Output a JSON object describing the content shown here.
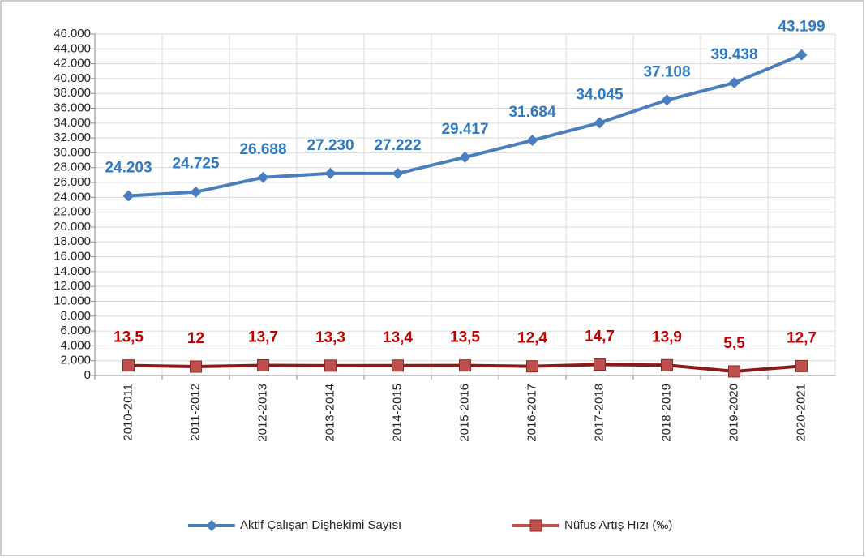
{
  "chart_data": {
    "type": "line",
    "categories": [
      "2010-2011",
      "2011-2012",
      "2012-2013",
      "2013-2014",
      "2014-2015",
      "2015-2016",
      "2016-2017",
      "2017-2018",
      "2018-2019",
      "2019-2020",
      "2020-2021"
    ],
    "series": [
      {
        "name": "Aktif Çalışan Dişhekimi Sayısı",
        "color": "#4a7ebf",
        "marker": "diamond",
        "values": [
          24203,
          24725,
          26688,
          27230,
          27222,
          29417,
          31684,
          34045,
          37108,
          39438,
          43199
        ],
        "value_labels": [
          "24.203",
          "24.725",
          "26.688",
          "27.230",
          "27.222",
          "29.417",
          "31.684",
          "34.045",
          "37.108",
          "39.438",
          "43.199"
        ]
      },
      {
        "name": "Nüfus Artış Hızı (‰)",
        "color": "#c0504d",
        "marker": "square",
        "axis": "y2",
        "values": [
          13.5,
          12,
          13.7,
          13.3,
          13.4,
          13.5,
          12.4,
          14.7,
          13.9,
          5.5,
          12.7
        ],
        "value_labels": [
          "13,5",
          "12",
          "13,7",
          "13,3",
          "13,4",
          "13,5",
          "12,4",
          "14,7",
          "13,9",
          "5,5",
          "12,7"
        ]
      }
    ],
    "ylim": [
      0,
      46000
    ],
    "yticks": [
      {
        "value": 0,
        "label": "0"
      },
      {
        "value": 2000,
        "label": "2.000"
      },
      {
        "value": 4000,
        "label": "4.000"
      },
      {
        "value": 6000,
        "label": "6.000"
      },
      {
        "value": 8000,
        "label": "8.000"
      },
      {
        "value": 10000,
        "label": "10.000"
      },
      {
        "value": 12000,
        "label": "12.000"
      },
      {
        "value": 14000,
        "label": "14.000"
      },
      {
        "value": 16000,
        "label": "16.000"
      },
      {
        "value": 18000,
        "label": "18.000"
      },
      {
        "value": 20000,
        "label": "20.000"
      },
      {
        "value": 22000,
        "label": "22.000"
      },
      {
        "value": 24000,
        "label": "24.000"
      },
      {
        "value": 26000,
        "label": "26.000"
      },
      {
        "value": 28000,
        "label": "28.000"
      },
      {
        "value": 30000,
        "label": "30.000"
      },
      {
        "value": 32000,
        "label": "32.000"
      },
      {
        "value": 34000,
        "label": "34.000"
      },
      {
        "value": 36000,
        "label": "36.000"
      },
      {
        "value": 38000,
        "label": "38.000"
      },
      {
        "value": 40000,
        "label": "40.000"
      },
      {
        "value": 42000,
        "label": "42.000"
      },
      {
        "value": 44000,
        "label": "44.000"
      },
      {
        "value": 46000,
        "label": "46.000"
      }
    ],
    "y2lim": [
      0,
      460
    ],
    "grid": true,
    "legend": "bottom"
  }
}
